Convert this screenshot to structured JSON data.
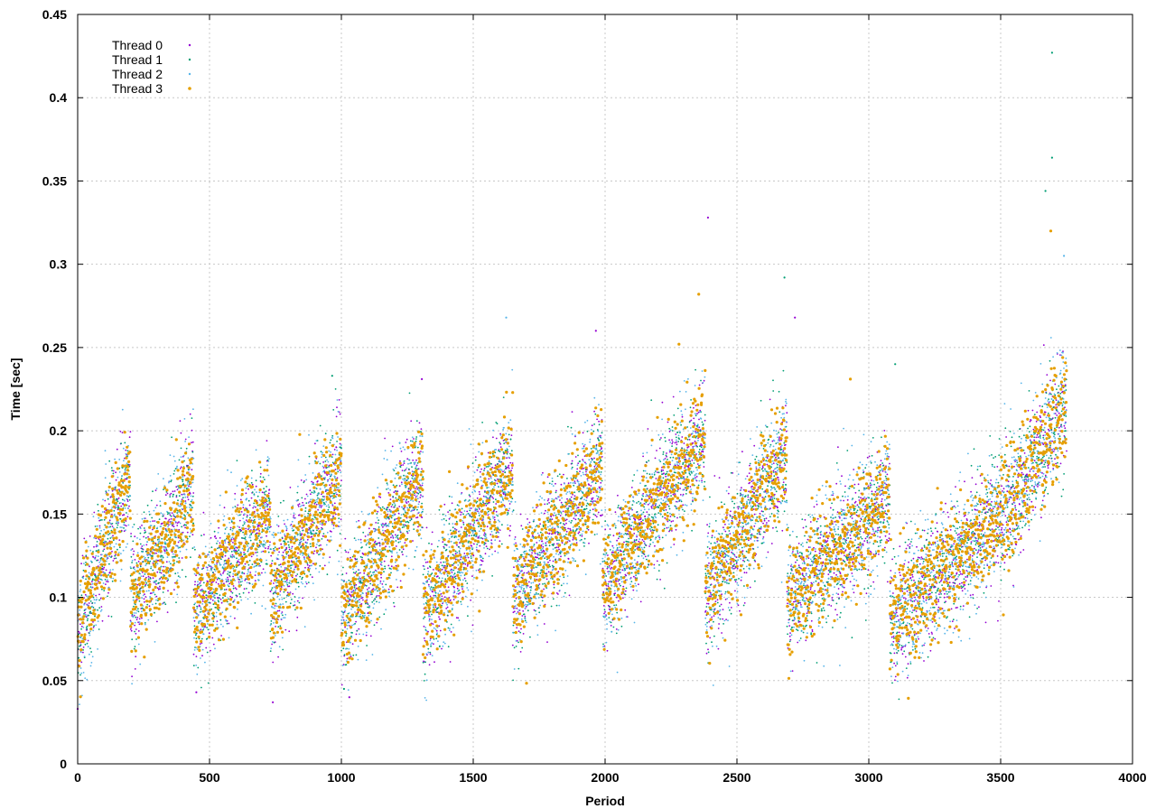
{
  "chart_data": {
    "type": "scatter",
    "title": "",
    "xlabel": "Period",
    "ylabel": "Time [sec]",
    "xlim": [
      0,
      4000
    ],
    "ylim": [
      0,
      0.45
    ],
    "x_ticks": [
      0,
      500,
      1000,
      1500,
      2000,
      2500,
      3000,
      3500,
      4000
    ],
    "y_ticks": [
      0,
      0.05,
      0.1,
      0.15,
      0.2,
      0.25,
      0.3,
      0.35,
      0.4,
      0.45
    ],
    "x_tick_labels": [
      "0",
      "500",
      "1000",
      "1500",
      "2000",
      "2500",
      "3000",
      "3500",
      "4000"
    ],
    "y_tick_labels": [
      "0",
      "0.05",
      "0.1",
      "0.15",
      "0.2",
      "0.25",
      "0.3",
      "0.35",
      "0.4",
      "0.45"
    ],
    "grid": true,
    "legend_position": "top-left",
    "series": [
      {
        "name": "Thread 0",
        "color": "#9400d3"
      },
      {
        "name": "Thread 1",
        "color": "#009e73"
      },
      {
        "name": "Thread 2",
        "color": "#56b4e9"
      },
      {
        "name": "Thread 3",
        "color": "#e69f00"
      }
    ],
    "point_count_per_series": 3750,
    "cycle_segments": [
      {
        "x0": 0,
        "x1": 200,
        "y0": 0.08,
        "y1": 0.175
      },
      {
        "x0": 200,
        "x1": 440,
        "y0": 0.095,
        "y1": 0.165
      },
      {
        "x0": 440,
        "x1": 730,
        "y0": 0.09,
        "y1": 0.155
      },
      {
        "x0": 730,
        "x1": 1000,
        "y0": 0.1,
        "y1": 0.175
      },
      {
        "x0": 1000,
        "x1": 1310,
        "y0": 0.085,
        "y1": 0.175
      },
      {
        "x0": 1310,
        "x1": 1650,
        "y0": 0.09,
        "y1": 0.18
      },
      {
        "x0": 1650,
        "x1": 1990,
        "y0": 0.1,
        "y1": 0.18
      },
      {
        "x0": 1990,
        "x1": 2380,
        "y0": 0.105,
        "y1": 0.2
      },
      {
        "x0": 2380,
        "x1": 2690,
        "y0": 0.1,
        "y1": 0.19
      },
      {
        "x0": 2690,
        "x1": 3080,
        "y0": 0.1,
        "y1": 0.16
      },
      {
        "x0": 3080,
        "x1": 3540,
        "y0": 0.085,
        "y1": 0.155
      },
      {
        "x0": 3540,
        "x1": 3750,
        "y0": 0.155,
        "y1": 0.22
      }
    ],
    "outliers": [
      {
        "x": 3695,
        "y": 0.427,
        "series": "Thread 1"
      },
      {
        "x": 3695,
        "y": 0.364,
        "series": "Thread 1"
      },
      {
        "x": 3670,
        "y": 0.344,
        "series": "Thread 1"
      },
      {
        "x": 2390,
        "y": 0.328,
        "series": "Thread 0"
      },
      {
        "x": 3690,
        "y": 0.32,
        "series": "Thread 3"
      },
      {
        "x": 2680,
        "y": 0.292,
        "series": "Thread 1"
      },
      {
        "x": 2355,
        "y": 0.282,
        "series": "Thread 3"
      },
      {
        "x": 1625,
        "y": 0.268,
        "series": "Thread 2"
      },
      {
        "x": 1965,
        "y": 0.26,
        "series": "Thread 0"
      },
      {
        "x": 2280,
        "y": 0.252,
        "series": "Thread 3"
      },
      {
        "x": 3100,
        "y": 0.24,
        "series": "Thread 1"
      },
      {
        "x": 2930,
        "y": 0.231,
        "series": "Thread 3"
      },
      {
        "x": 965,
        "y": 0.233,
        "series": "Thread 1"
      },
      {
        "x": 1305,
        "y": 0.231,
        "series": "Thread 0"
      },
      {
        "x": 2720,
        "y": 0.268,
        "series": "Thread 0"
      },
      {
        "x": 3740,
        "y": 0.305,
        "series": "Thread 2"
      },
      {
        "x": 1030,
        "y": 0.04,
        "series": "Thread 0"
      },
      {
        "x": 1010,
        "y": 0.045,
        "series": "Thread 1"
      },
      {
        "x": 740,
        "y": 0.037,
        "series": "Thread 0"
      },
      {
        "x": 0,
        "y": 0.033,
        "series": "Thread 0"
      },
      {
        "x": 450,
        "y": 0.043,
        "series": "Thread 0"
      }
    ]
  }
}
